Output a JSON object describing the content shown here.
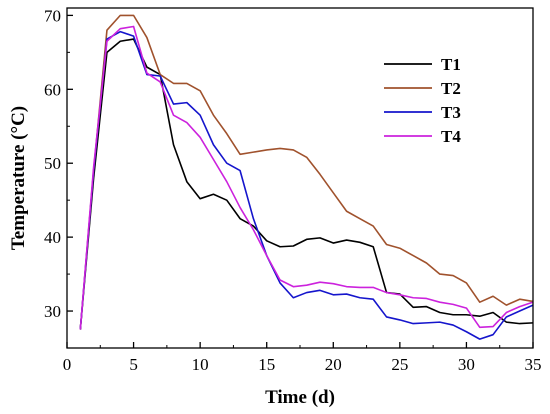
{
  "chart_data": {
    "type": "line",
    "xlabel": "Time (d)",
    "ylabel": "Temperature (°C)",
    "xlim": [
      0,
      35
    ],
    "ylim": [
      25,
      71
    ],
    "xticks": [
      0,
      5,
      10,
      15,
      20,
      25,
      30,
      35
    ],
    "yticks": [
      30,
      40,
      50,
      60,
      70
    ],
    "grid": false,
    "legend_position": "top-right",
    "x": [
      1,
      2,
      3,
      4,
      5,
      6,
      7,
      8,
      9,
      10,
      11,
      12,
      13,
      14,
      15,
      16,
      17,
      18,
      19,
      20,
      21,
      22,
      23,
      24,
      25,
      26,
      27,
      28,
      29,
      30,
      31,
      32,
      33,
      34,
      35
    ],
    "series": [
      {
        "name": "T1",
        "color": "#000000",
        "values": [
          27.5,
          48,
          65,
          66.5,
          66.8,
          63,
          62,
          52.5,
          47.5,
          45.2,
          45.8,
          45,
          42.5,
          41.5,
          39.5,
          38.7,
          38.8,
          39.7,
          39.9,
          39.2,
          39.6,
          39.3,
          38.7,
          32.5,
          32.3,
          30.5,
          30.6,
          29.8,
          29.5,
          29.5,
          29.3,
          29.8,
          28.5,
          28.3,
          28.4
        ]
      },
      {
        "name": "T2",
        "color": "#A0522D",
        "values": [
          27.5,
          49,
          68,
          70,
          70,
          67,
          62,
          60.8,
          60.8,
          59.8,
          56.5,
          54,
          51.2,
          51.5,
          51.8,
          52,
          51.8,
          50.8,
          48.5,
          46,
          43.5,
          42.5,
          41.5,
          39,
          38.5,
          37.5,
          36.5,
          35,
          34.8,
          33.8,
          31.2,
          32,
          30.8,
          31.6,
          31.3
        ]
      },
      {
        "name": "T3",
        "color": "#1515CC",
        "values": [
          27.5,
          49,
          66.8,
          67.8,
          67.2,
          62,
          61.8,
          58,
          58.2,
          56.5,
          52.5,
          50,
          49,
          42.5,
          37.5,
          33.8,
          31.8,
          32.5,
          32.8,
          32.2,
          32.3,
          31.8,
          31.6,
          29.2,
          28.8,
          28.3,
          28.4,
          28.5,
          28.1,
          27.2,
          26.2,
          26.8,
          29.2,
          30,
          30.8
        ]
      },
      {
        "name": "T4",
        "color": "#CC22DD",
        "values": [
          27.5,
          49.5,
          66.5,
          68.2,
          68.5,
          62.2,
          61,
          56.5,
          55.5,
          53.5,
          50.5,
          47.5,
          44,
          41,
          37.5,
          34.2,
          33.3,
          33.5,
          33.9,
          33.7,
          33.3,
          33.2,
          33.2,
          32.5,
          32.2,
          31.8,
          31.7,
          31.2,
          30.9,
          30.4,
          27.8,
          27.9,
          29.8,
          30.6,
          31.2
        ]
      }
    ]
  }
}
